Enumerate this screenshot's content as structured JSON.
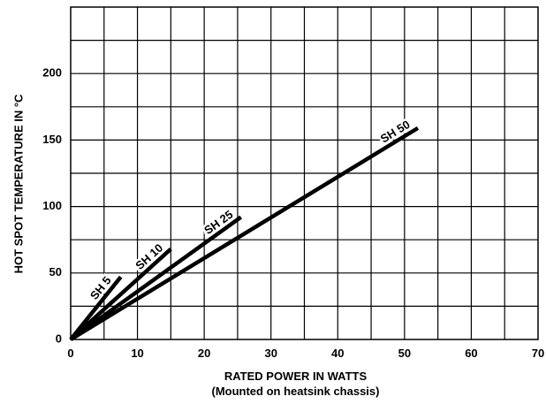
{
  "chart_data": {
    "type": "line",
    "xlabel": "RATED POWER IN WATTS",
    "xlabel_sub": "(Mounted on heatsink chassis)",
    "ylabel": "HOT SPOT TEMPERATURE IN °C",
    "xlim": [
      0,
      70
    ],
    "ylim": [
      0,
      250
    ],
    "x_ticks": [
      0,
      10,
      20,
      30,
      40,
      50,
      60,
      70
    ],
    "x_tick_labels": [
      "0",
      "10",
      "20",
      "30",
      "40",
      "50",
      "60",
      "70"
    ],
    "y_ticks": [
      0,
      50,
      100,
      150,
      200
    ],
    "y_tick_labels": [
      "0",
      "50",
      "100",
      "150",
      "200"
    ],
    "grid": true,
    "grid_x_step": 5,
    "grid_y_step": 25,
    "series": [
      {
        "name": "SH 5",
        "x": [
          0,
          7.5
        ],
        "y": [
          0,
          47
        ]
      },
      {
        "name": "SH 10",
        "x": [
          0,
          15
        ],
        "y": [
          0,
          68
        ]
      },
      {
        "name": "SH 25",
        "x": [
          0,
          25.5
        ],
        "y": [
          0,
          92
        ]
      },
      {
        "name": "SH 50",
        "x": [
          0,
          52
        ],
        "y": [
          0,
          159
        ]
      }
    ]
  }
}
